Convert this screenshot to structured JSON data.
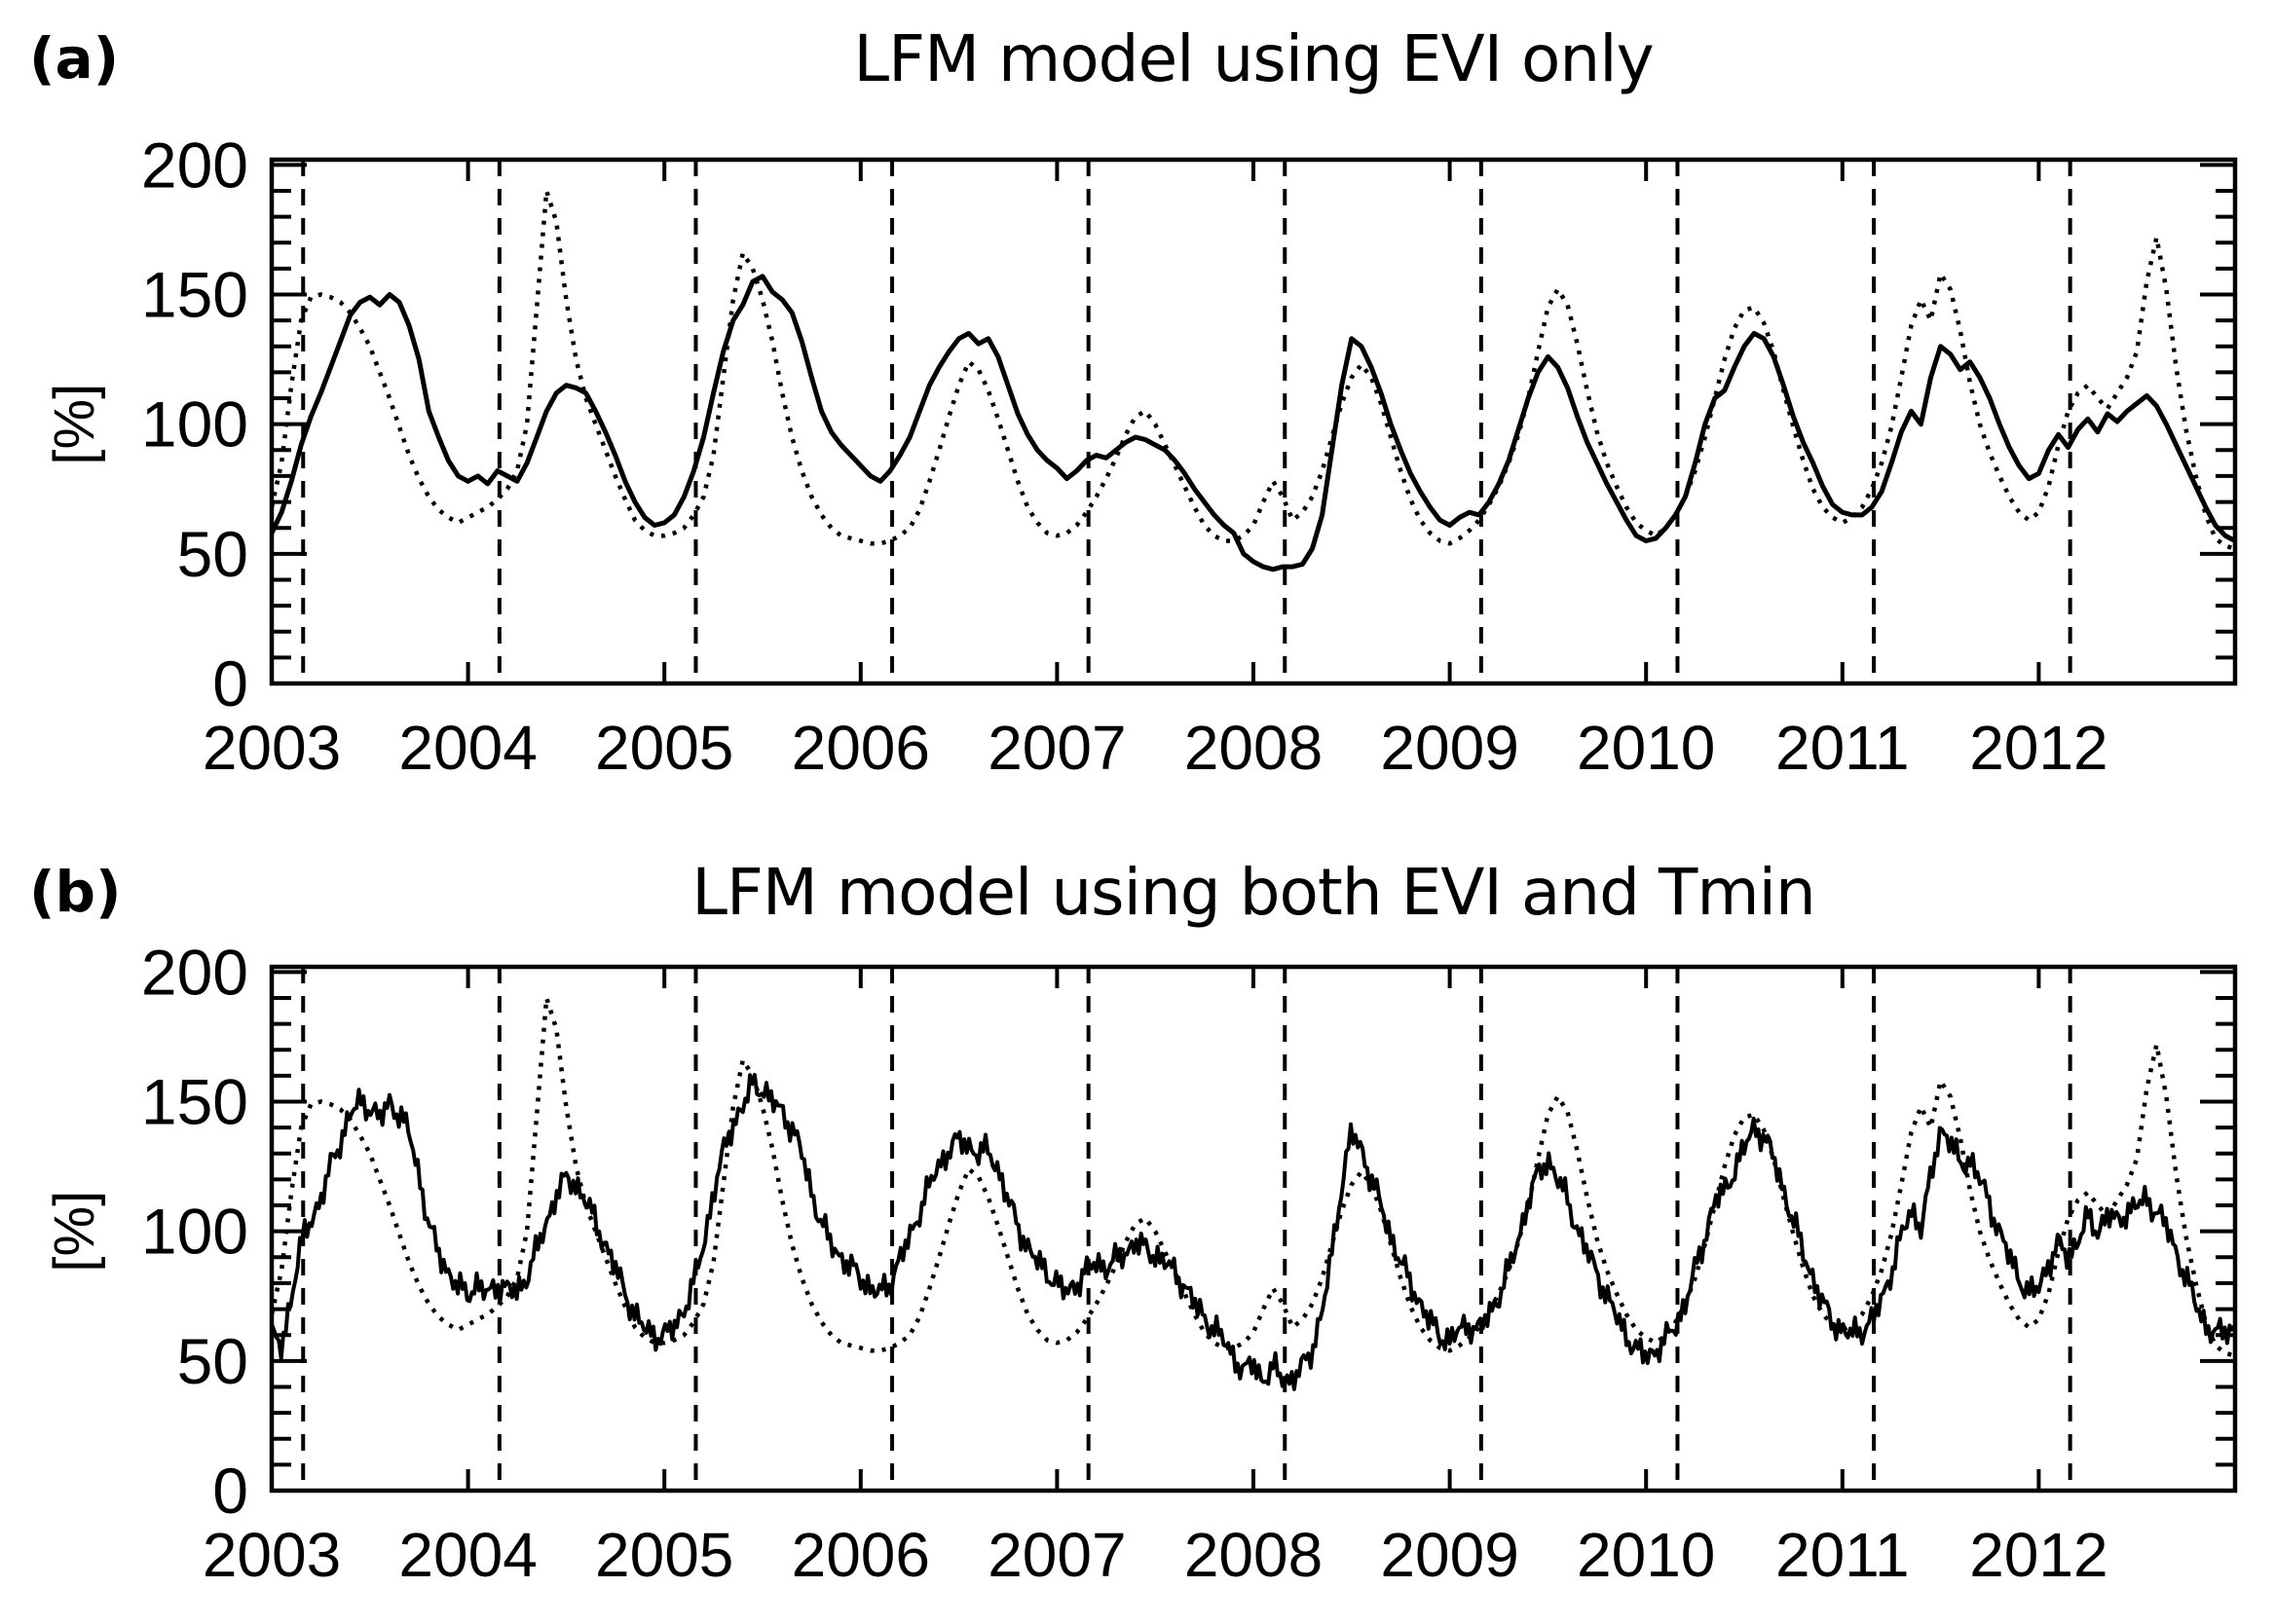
{
  "figure": {
    "background_color": "#ffffff",
    "ink_color": "#000000"
  },
  "chart_data": [
    {
      "type": "line",
      "panel_label": "(a)",
      "title": "LFM model using EVI only",
      "ylabel": "[%]",
      "xlabel": "",
      "xlim": [
        2003,
        2013
      ],
      "ylim": [
        0,
        202
      ],
      "xticks": [
        2003,
        2004,
        2005,
        2006,
        2007,
        2008,
        2009,
        2010,
        2011,
        2012
      ],
      "yticks": [
        0,
        50,
        100,
        150,
        200
      ],
      "y_minor_step": 10,
      "grid": false,
      "legend": "none",
      "vlines": {
        "style": "dashed",
        "x": [
          2003.16,
          2004.16,
          2005.16,
          2006.16,
          2007.16,
          2008.16,
          2009.16,
          2010.16,
          2011.16,
          2012.16
        ]
      },
      "x_start": 2003.0,
      "x_step": 0.05,
      "series": [
        {
          "name": "dotted",
          "style": "dotted",
          "values": [
            68,
            85,
            115,
            140,
            149,
            150,
            149,
            147,
            143,
            137,
            130,
            120,
            110,
            99,
            88,
            79,
            72,
            67,
            64,
            62,
            64,
            66,
            68,
            71,
            75,
            82,
            100,
            145,
            190,
            178,
            148,
            125,
            110,
            100,
            90,
            80,
            71,
            63,
            59,
            57,
            57,
            58,
            60,
            65,
            72,
            88,
            118,
            148,
            166,
            160,
            148,
            132,
            112,
            95,
            82,
            72,
            65,
            60,
            57,
            56,
            55,
            54,
            54,
            55,
            57,
            60,
            67,
            78,
            90,
            103,
            115,
            124,
            121,
            113,
            102,
            90,
            78,
            68,
            62,
            58,
            57,
            58,
            61,
            66,
            72,
            79,
            87,
            96,
            103,
            105,
            100,
            92,
            84,
            76,
            68,
            61,
            57,
            55,
            55,
            57,
            61,
            70,
            78,
            72,
            63,
            66,
            72,
            82,
            95,
            108,
            118,
            123,
            118,
            108,
            95,
            82,
            71,
            63,
            58,
            55,
            54,
            56,
            59,
            63,
            69,
            76,
            85,
            96,
            110,
            128,
            145,
            152,
            146,
            131,
            113,
            97,
            85,
            76,
            68,
            62,
            59,
            57,
            60,
            65,
            72,
            82,
            95,
            110,
            125,
            137,
            144,
            145,
            139,
            128,
            113,
            99,
            86,
            75,
            68,
            64,
            62,
            64,
            68,
            75,
            85,
            99,
            118,
            138,
            148,
            140,
            158,
            152,
            136,
            116,
            100,
            89,
            80,
            72,
            66,
            63,
            66,
            76,
            92,
            105,
            112,
            115,
            110,
            106,
            112,
            118,
            128,
            155,
            172,
            152,
            122,
            98,
            80,
            65,
            56,
            53,
            52
          ]
        },
        {
          "name": "solid",
          "style": "solid",
          "values": [
            58,
            66,
            78,
            92,
            103,
            112,
            122,
            132,
            142,
            147,
            149,
            146,
            150,
            147,
            138,
            125,
            105,
            95,
            86,
            80,
            78,
            80,
            77,
            82,
            80,
            78,
            85,
            95,
            105,
            112,
            115,
            114,
            112,
            105,
            97,
            88,
            78,
            70,
            64,
            61,
            62,
            65,
            72,
            82,
            95,
            112,
            128,
            140,
            146,
            155,
            157,
            151,
            148,
            143,
            132,
            118,
            105,
            97,
            92,
            88,
            84,
            80,
            78,
            82,
            88,
            95,
            105,
            115,
            122,
            128,
            133,
            135,
            131,
            133,
            126,
            115,
            104,
            96,
            90,
            86,
            83,
            79,
            82,
            86,
            88,
            87,
            90,
            93,
            95,
            94,
            92,
            90,
            86,
            81,
            75,
            70,
            65,
            61,
            58,
            50,
            47,
            45,
            44,
            45,
            45,
            46,
            52,
            65,
            90,
            115,
            133,
            130,
            122,
            112,
            100,
            90,
            81,
            74,
            68,
            63,
            61,
            64,
            66,
            65,
            70,
            77,
            86,
            98,
            110,
            120,
            126,
            122,
            114,
            103,
            93,
            85,
            77,
            70,
            63,
            57,
            55,
            56,
            60,
            65,
            72,
            85,
            100,
            110,
            113,
            122,
            130,
            135,
            133,
            126,
            115,
            103,
            93,
            85,
            76,
            69,
            66,
            65,
            65,
            68,
            74,
            85,
            97,
            105,
            100,
            118,
            130,
            127,
            121,
            124,
            118,
            110,
            100,
            91,
            84,
            79,
            81,
            90,
            96,
            91,
            98,
            102,
            97,
            104,
            101,
            105,
            108,
            111,
            107,
            100,
            92,
            84,
            76,
            68,
            61,
            57,
            55
          ]
        }
      ]
    },
    {
      "type": "line",
      "panel_label": "(b)",
      "title": "LFM model using both EVI and Tmin",
      "ylabel": "[%]",
      "xlabel": "",
      "xlim": [
        2003,
        2013
      ],
      "ylim": [
        0,
        202
      ],
      "xticks": [
        2003,
        2004,
        2005,
        2006,
        2007,
        2008,
        2009,
        2010,
        2011,
        2012
      ],
      "yticks": [
        0,
        50,
        100,
        150,
        200
      ],
      "y_minor_step": 10,
      "grid": false,
      "legend": "none",
      "vlines": {
        "style": "dashed",
        "x": [
          2003.16,
          2004.16,
          2005.16,
          2006.16,
          2007.16,
          2008.16,
          2009.16,
          2010.16,
          2011.16,
          2012.16
        ]
      },
      "x_start": 2003.0,
      "x_step": 0.05,
      "series": [
        {
          "name": "dotted",
          "style": "dotted",
          "values": [
            68,
            85,
            115,
            140,
            149,
            150,
            149,
            147,
            143,
            137,
            130,
            120,
            110,
            99,
            88,
            79,
            72,
            67,
            64,
            62,
            64,
            66,
            68,
            71,
            75,
            82,
            100,
            145,
            190,
            178,
            148,
            125,
            110,
            100,
            90,
            80,
            71,
            63,
            59,
            57,
            57,
            58,
            60,
            65,
            72,
            88,
            118,
            148,
            166,
            160,
            148,
            132,
            112,
            95,
            82,
            72,
            65,
            60,
            57,
            56,
            55,
            54,
            54,
            55,
            57,
            60,
            67,
            78,
            90,
            103,
            115,
            124,
            121,
            113,
            102,
            90,
            78,
            68,
            62,
            58,
            57,
            58,
            61,
            66,
            72,
            79,
            87,
            96,
            103,
            105,
            100,
            92,
            84,
            76,
            68,
            61,
            57,
            55,
            55,
            57,
            61,
            70,
            78,
            72,
            63,
            66,
            72,
            82,
            95,
            108,
            118,
            123,
            118,
            108,
            95,
            82,
            71,
            63,
            58,
            55,
            54,
            56,
            59,
            63,
            69,
            76,
            85,
            96,
            110,
            128,
            145,
            152,
            146,
            131,
            113,
            97,
            85,
            76,
            68,
            62,
            59,
            57,
            60,
            65,
            72,
            82,
            95,
            110,
            125,
            137,
            144,
            145,
            139,
            128,
            113,
            99,
            86,
            75,
            68,
            64,
            62,
            64,
            68,
            75,
            85,
            99,
            118,
            138,
            148,
            140,
            158,
            152,
            136,
            116,
            100,
            89,
            80,
            72,
            66,
            63,
            66,
            76,
            92,
            105,
            112,
            115,
            110,
            106,
            112,
            118,
            128,
            155,
            172,
            152,
            122,
            98,
            80,
            65,
            56,
            53,
            52
          ]
        },
        {
          "name": "solid",
          "style": "solid",
          "noise": {
            "amplitude": 4.5,
            "sample_step": 0.012,
            "components": [
              [
                230,
                0,
                0.7
              ],
              [
                85,
                1.3,
                0.5
              ],
              [
                47,
                0.5,
                0.35
              ]
            ]
          },
          "values": [
            60,
            55,
            75,
            95,
            105,
            112,
            125,
            135,
            145,
            150,
            148,
            143,
            150,
            145,
            138,
            122,
            102,
            92,
            84,
            78,
            76,
            80,
            75,
            80,
            78,
            76,
            83,
            93,
            103,
            115,
            120,
            118,
            112,
            103,
            95,
            86,
            76,
            68,
            62,
            60,
            60,
            63,
            70,
            80,
            95,
            115,
            130,
            142,
            148,
            157,
            155,
            150,
            146,
            140,
            130,
            115,
            103,
            95,
            90,
            86,
            82,
            78,
            76,
            80,
            90,
            97,
            108,
            118,
            125,
            132,
            135,
            133,
            130,
            131,
            124,
            112,
            102,
            94,
            88,
            84,
            80,
            76,
            80,
            85,
            88,
            86,
            89,
            92,
            96,
            93,
            91,
            88,
            84,
            79,
            72,
            67,
            62,
            58,
            52,
            45,
            50,
            42,
            47,
            44,
            42,
            48,
            55,
            68,
            92,
            118,
            138,
            132,
            120,
            110,
            98,
            88,
            80,
            72,
            65,
            60,
            58,
            62,
            64,
            62,
            68,
            75,
            85,
            97,
            112,
            122,
            128,
            120,
            112,
            101,
            92,
            84,
            75,
            67,
            60,
            54,
            52,
            54,
            58,
            64,
            72,
            85,
            98,
            112,
            115,
            124,
            132,
            140,
            137,
            128,
            116,
            104,
            92,
            82,
            72,
            65,
            62,
            60,
            62,
            66,
            73,
            85,
            98,
            108,
            102,
            120,
            140,
            135,
            125,
            128,
            120,
            110,
            100,
            90,
            82,
            76,
            78,
            88,
            95,
            90,
            97,
            105,
            100,
            107,
            103,
            108,
            110,
            112,
            108,
            102,
            92,
            82,
            72,
            64,
            60,
            62,
            63
          ]
        }
      ]
    }
  ]
}
